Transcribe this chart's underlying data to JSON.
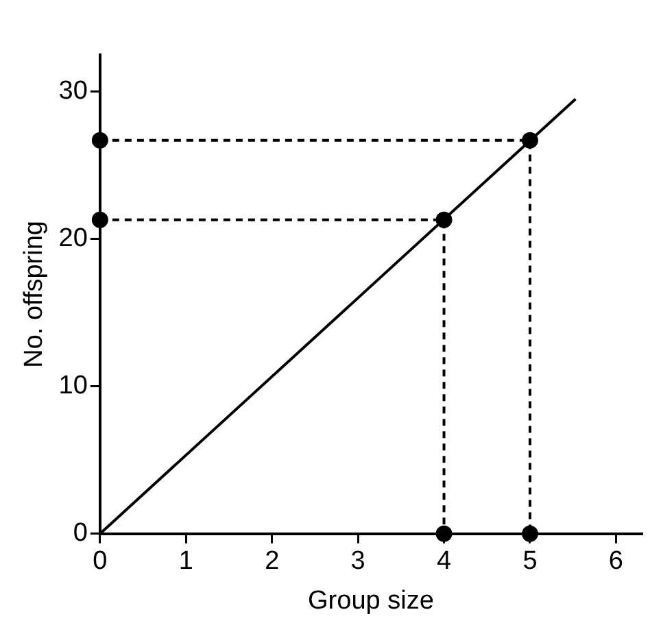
{
  "chart_data": {
    "type": "line",
    "xlabel": "Group size",
    "ylabel": "No. offspring",
    "xlim": [
      0,
      6.3
    ],
    "xticks": [
      0,
      1,
      2,
      3,
      4,
      5,
      6
    ],
    "ylim": [
      0,
      32.5
    ],
    "yticks": [
      0,
      10,
      20,
      30
    ],
    "grid": false,
    "legend": false,
    "series": [
      {
        "type": "line",
        "color": "#000000",
        "x": [
          0,
          5.53
        ],
        "values": [
          0,
          29.5
        ],
        "marker": "none",
        "line_style": "solid"
      },
      {
        "type": "line",
        "color": "#000000",
        "x": [
          0,
          5,
          5
        ],
        "values": [
          26.7,
          26.7,
          0
        ],
        "marker": "none",
        "line_style": "dashed"
      },
      {
        "type": "line",
        "color": "#000000",
        "x": [
          0,
          4,
          4
        ],
        "values": [
          21.3,
          21.3,
          0
        ],
        "marker": "none",
        "line_style": "dashed"
      },
      {
        "type": "scatter",
        "color": "#000000",
        "x": [
          0,
          0,
          4,
          5,
          4,
          5
        ],
        "values": [
          21.3,
          26.7,
          21.3,
          26.7,
          0,
          0
        ],
        "marker": "circle"
      }
    ]
  }
}
